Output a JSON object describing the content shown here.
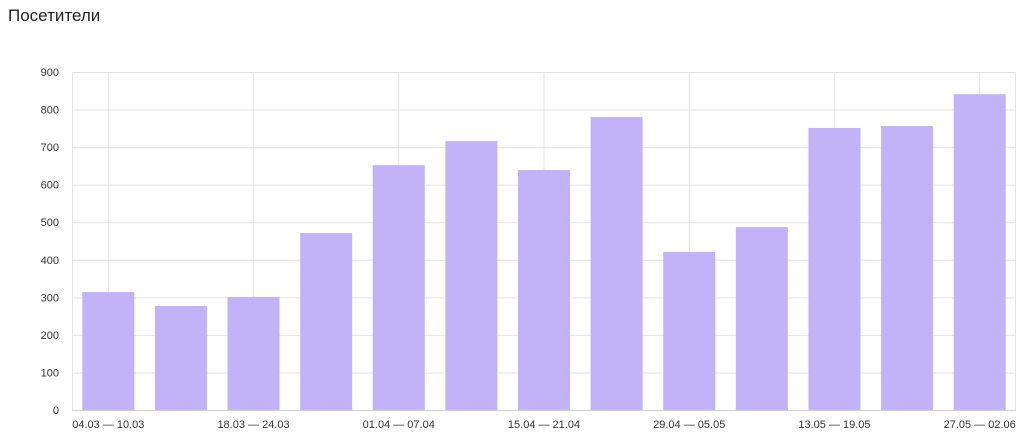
{
  "title": "Посетители",
  "chart_data": {
    "type": "bar",
    "title": "Посетители",
    "x_tick_labels": [
      "04.03 — 10.03",
      "18.03 — 24.03",
      "01.04 — 07.04",
      "15.04 — 21.04",
      "29.04 — 05.05",
      "13.05 — 19.05",
      "27.05 — 02.06"
    ],
    "values": [
      314,
      277,
      301,
      471,
      652,
      716,
      639,
      780,
      421,
      487,
      751,
      756,
      841
    ],
    "ylim": [
      0,
      900
    ],
    "yticks": [
      0,
      100,
      200,
      300,
      400,
      500,
      600,
      700,
      800,
      900
    ],
    "grid": true,
    "bar_color": "#c2b2f8"
  }
}
